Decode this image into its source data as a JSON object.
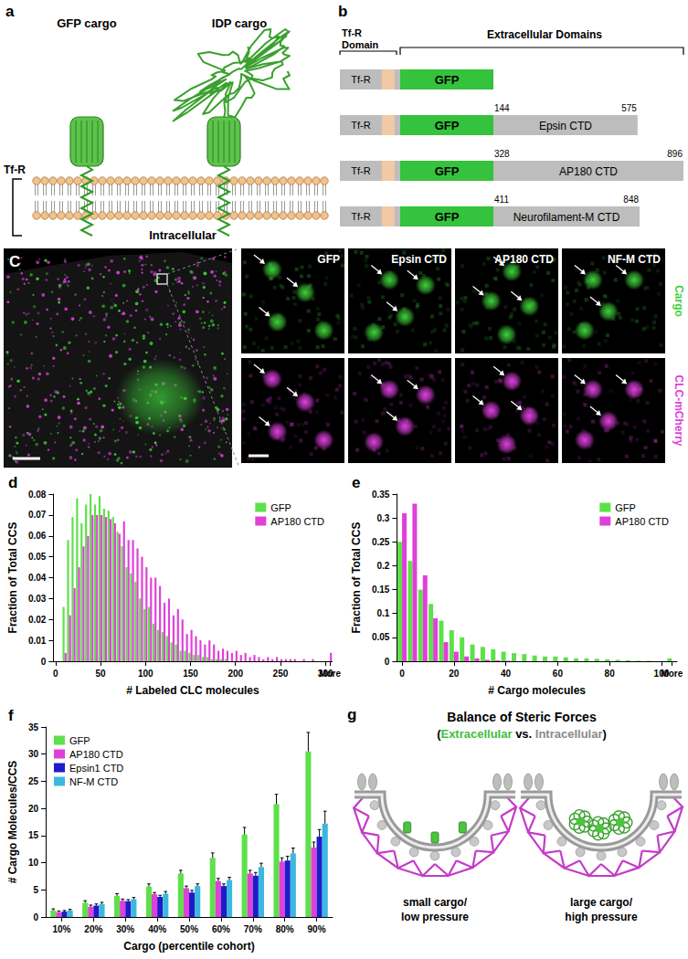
{
  "figure": {
    "a": {
      "letter": "a",
      "gfp_cargo": "GFP cargo",
      "idp_cargo": "IDP cargo",
      "membrane_label": "Tf-R",
      "side": "Intracellular"
    },
    "b": {
      "letter": "b",
      "domain_header": [
        "Tf-R",
        "Domain"
      ],
      "extracellular_header": "Extracellular Domains",
      "constructs": [
        {
          "anchor": "Tf-R",
          "tag": "GFP"
        },
        {
          "anchor": "Tf-R",
          "tag": "GFP",
          "cargo": "Epsin CTD",
          "start": 144,
          "end": 575
        },
        {
          "anchor": "Tf-R",
          "tag": "GFP",
          "cargo": "AP180 CTD",
          "start": 328,
          "end": 896
        },
        {
          "anchor": "Tf-R",
          "tag": "GFP",
          "cargo": "Neurofilament-M CTD",
          "start": 411,
          "end": 848
        }
      ]
    },
    "c": {
      "letter": "C",
      "columns": [
        "GFP",
        "Epsin CTD",
        "AP180 CTD",
        "NF-M CTD"
      ],
      "rows": [
        {
          "label": "Cargo",
          "color": "#3fd23a"
        },
        {
          "label": "CLC-mCherry",
          "color": "#e040e0"
        }
      ]
    },
    "g": {
      "letter": "g",
      "title": "Balance of Steric Forces",
      "subtitle": [
        {
          "text": "(",
          "color": "#000000"
        },
        {
          "text": "Extracellular",
          "color": "#3fbf3a"
        },
        {
          "text": " vs. ",
          "color": "#000000"
        },
        {
          "text": "Intracellular",
          "color": "#8a8a8a"
        },
        {
          "text": ")",
          "color": "#000000"
        }
      ],
      "cases": [
        [
          "small cargo/",
          "low pressure"
        ],
        [
          "large cargo/",
          "high pressure"
        ]
      ]
    }
  },
  "chart_data": [
    {
      "type": "bar",
      "title": "d",
      "xlabel": "# Labeled CLC molecules",
      "ylabel": "Fraction of Total CCS",
      "categories": [
        "0",
        null,
        null,
        null,
        null,
        null,
        null,
        null,
        null,
        null,
        "50",
        null,
        null,
        null,
        null,
        null,
        null,
        null,
        null,
        null,
        "100",
        null,
        null,
        null,
        null,
        null,
        null,
        null,
        null,
        null,
        "150",
        null,
        null,
        null,
        null,
        null,
        null,
        null,
        null,
        null,
        "200",
        null,
        null,
        null,
        null,
        null,
        null,
        null,
        null,
        null,
        "250",
        null,
        null,
        null,
        null,
        null,
        null,
        null,
        null,
        null,
        "300",
        "More"
      ],
      "series": [
        {
          "name": "GFP",
          "color": "#5ee04a",
          "values": [
            0,
            0,
            0.026,
            0.058,
            0.069,
            0.078,
            0.066,
            0.075,
            0.08,
            0.075,
            0.079,
            0.073,
            0.072,
            0.069,
            0.062,
            0.055,
            0.045,
            0.042,
            0.038,
            0.03,
            0.025,
            0.026,
            0.018,
            0.015,
            0.014,
            0.012,
            0.009,
            0.008,
            0.005,
            0.005,
            0.004,
            0.003,
            0.003,
            0.002,
            0.002,
            0.001,
            0.001,
            0.001,
            0.001,
            0,
            0,
            0,
            0,
            0,
            0,
            0,
            0,
            0,
            0,
            0,
            0,
            0,
            0,
            0,
            0,
            0,
            0,
            0,
            0,
            0,
            0,
            0
          ]
        },
        {
          "name": "AP180 CTD",
          "color": "#e040d8",
          "values": [
            0,
            0,
            0.004,
            0.022,
            0.035,
            0.045,
            0.055,
            0.06,
            0.07,
            0.07,
            0.07,
            0.069,
            0.068,
            0.066,
            0.061,
            0.067,
            0.058,
            0.058,
            0.054,
            0.05,
            0.045,
            0.04,
            0.04,
            0.036,
            0.028,
            0.03,
            0.022,
            0.025,
            0.02,
            0.013,
            0.015,
            0.012,
            0.01,
            0.008,
            0.01,
            0.008,
            0.005,
            0.006,
            0.005,
            0.004,
            0.005,
            0.003,
            0.004,
            0.002,
            0.003,
            0.002,
            0.001,
            0.002,
            0.001,
            0.002,
            0.001,
            0.001,
            0.001,
            0.001,
            0,
            0.001,
            0,
            0.001,
            0,
            0,
            0,
            0.004
          ]
        }
      ],
      "ylim": [
        0,
        0.08
      ],
      "yticks": [
        0,
        0.01,
        0.02,
        0.03,
        0.04,
        0.05,
        0.06,
        0.07,
        0.08
      ],
      "grid": false,
      "legend": "upper right"
    },
    {
      "type": "bar",
      "title": "e",
      "xlabel": "# Cargo molecules",
      "ylabel": "Fraction of Total CCS",
      "categories": [
        "0",
        null,
        null,
        null,
        null,
        "20",
        null,
        null,
        null,
        null,
        "40",
        null,
        null,
        null,
        null,
        "60",
        null,
        null,
        null,
        null,
        "80",
        null,
        null,
        null,
        null,
        "100",
        "More"
      ],
      "series": [
        {
          "name": "GFP",
          "color": "#5ee04a",
          "values": [
            0.25,
            0.21,
            0.15,
            0.12,
            0.085,
            0.065,
            0.05,
            0.035,
            0.03,
            0.025,
            0.02,
            0.017,
            0.015,
            0.012,
            0.01,
            0.01,
            0.008,
            0.006,
            0.006,
            0.005,
            0.004,
            0.003,
            0.002,
            0.001,
            0.001,
            0,
            0.006
          ]
        },
        {
          "name": "AP180 CTD",
          "color": "#e040d8",
          "values": [
            0.31,
            0.33,
            0.18,
            0.09,
            0.04,
            0.02,
            0.01,
            0.006,
            0.003,
            0.002,
            0.001,
            0,
            0,
            0,
            0,
            0,
            0,
            0,
            0,
            0,
            0,
            0,
            0,
            0,
            0,
            0,
            0
          ]
        }
      ],
      "ylim": [
        0,
        0.35
      ],
      "yticks": [
        0,
        0.05,
        0.1,
        0.15,
        0.2,
        0.25,
        0.3,
        0.35
      ],
      "grid": false,
      "legend": "upper right"
    },
    {
      "type": "bar",
      "title": "f",
      "xlabel": "Cargo (percentile cohort)",
      "ylabel": "# Cargo Molecules/CCS",
      "categories": [
        "10%",
        "20%",
        "30%",
        "40%",
        "50%",
        "60%",
        "70%",
        "80%",
        "90%"
      ],
      "series": [
        {
          "name": "GFP",
          "color": "#5ee04a",
          "values": [
            1.2,
            2.6,
            3.9,
            5.6,
            8,
            10.9,
            15.2,
            20.8,
            30.5
          ],
          "errors": [
            0.3,
            0.4,
            0.4,
            0.5,
            0.6,
            0.9,
            1.3,
            1.8,
            3.5
          ]
        },
        {
          "name": "AP180 CTD",
          "color": "#e040d8",
          "values": [
            0.9,
            1.9,
            3,
            4.2,
            5.3,
            6.6,
            8,
            10.2,
            12.8
          ],
          "errors": [
            0.2,
            0.3,
            0.3,
            0.3,
            0.4,
            0.5,
            0.6,
            0.7,
            1
          ]
        },
        {
          "name": "Epsin1 CTD",
          "color": "#1c1cc8",
          "values": [
            1,
            2.1,
            2.9,
            3.7,
            4.5,
            5.7,
            7.6,
            10.4,
            14.8
          ],
          "errors": [
            0.2,
            0.3,
            0.3,
            0.3,
            0.4,
            0.4,
            0.6,
            0.8,
            1.3
          ]
        },
        {
          "name": "NF-M CTD",
          "color": "#3cb8e0",
          "values": [
            1.2,
            2.4,
            3.3,
            4.3,
            5.7,
            6.8,
            9.2,
            11.7,
            17.2
          ],
          "errors": [
            0.2,
            0.3,
            0.3,
            0.4,
            0.4,
            0.5,
            0.7,
            1,
            2.3
          ]
        }
      ],
      "ylim": [
        0,
        35
      ],
      "yticks": [
        0,
        5,
        10,
        15,
        20,
        25,
        30,
        35
      ],
      "grid": false,
      "legend": "upper left"
    }
  ]
}
